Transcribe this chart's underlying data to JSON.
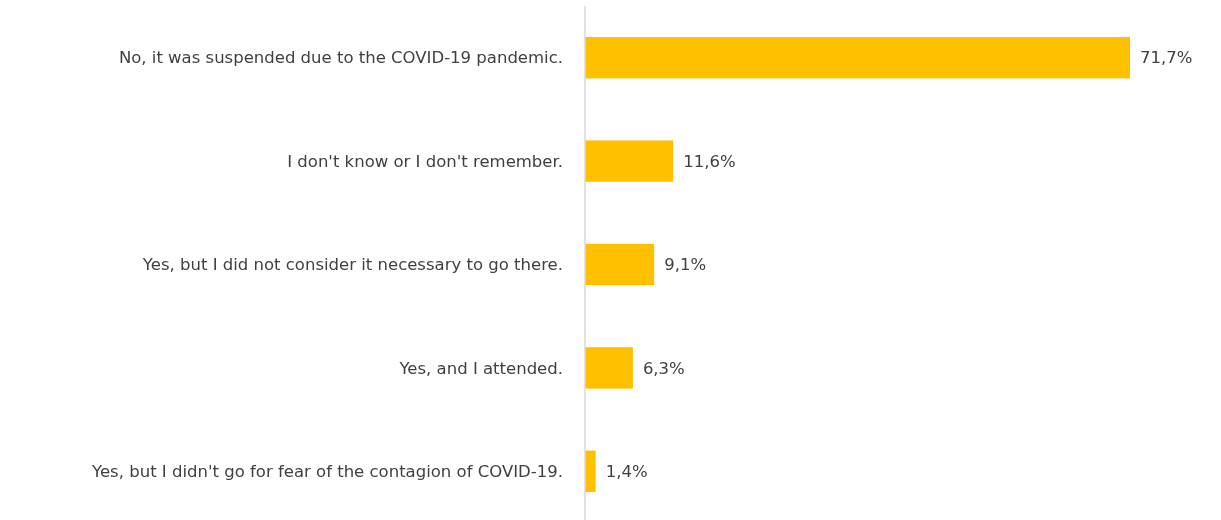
{
  "chart_data": {
    "type": "bar",
    "orientation": "horizontal",
    "categories": [
      "No, it was suspended due to the COVID-19 pandemic.",
      "I don't know or I don't remember.",
      "Yes, but I did not consider it necessary to go there.",
      "Yes, and I attended.",
      "Yes, but I didn't go for fear of the contagion of COVID-19."
    ],
    "values": [
      71.7,
      11.6,
      9.1,
      6.3,
      1.4
    ],
    "value_labels": [
      "71,7%",
      "11,6%",
      "9,1%",
      "6,3%",
      "1,4%"
    ],
    "color": "#ffc000"
  }
}
